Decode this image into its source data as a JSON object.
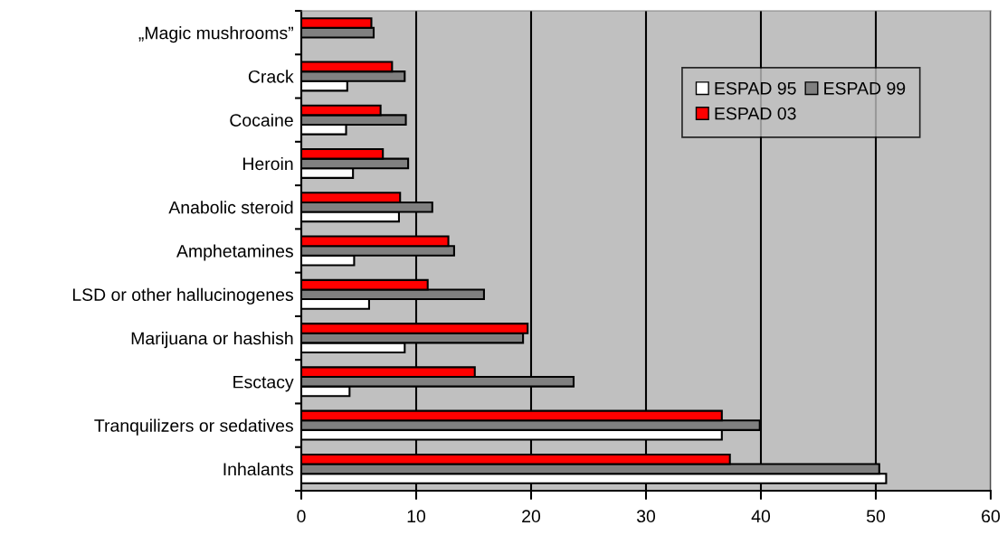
{
  "chart_data": {
    "type": "bar",
    "orientation": "horizontal",
    "categories": [
      "„Magic mushrooms”",
      "Crack",
      "Cocaine",
      "Heroin",
      "Anabolic steroid",
      "Amphetamines",
      "LSD or other hallucinogenes",
      "Marijuana or hashish",
      "Esctacy",
      "Tranquilizers or sedatives",
      "Inhalants"
    ],
    "series": [
      {
        "name": "ESPAD 95",
        "color": "#ffffff",
        "values": [
          null,
          4.0,
          3.9,
          4.5,
          8.5,
          4.6,
          5.9,
          9.0,
          4.2,
          36.6,
          50.9
        ]
      },
      {
        "name": "ESPAD 99",
        "color": "#808080",
        "values": [
          6.3,
          9.0,
          9.1,
          9.3,
          11.4,
          13.3,
          15.9,
          19.3,
          23.7,
          39.9,
          50.3
        ]
      },
      {
        "name": "ESPAD 03",
        "color": "#ff0000",
        "values": [
          6.1,
          7.9,
          6.9,
          7.1,
          8.6,
          12.8,
          11.0,
          19.7,
          15.1,
          36.6,
          37.3
        ]
      }
    ],
    "xlim": [
      0,
      60
    ],
    "xticks": [
      0,
      10,
      20,
      30,
      40,
      50,
      60
    ],
    "grid": "x",
    "legend": "top right"
  }
}
